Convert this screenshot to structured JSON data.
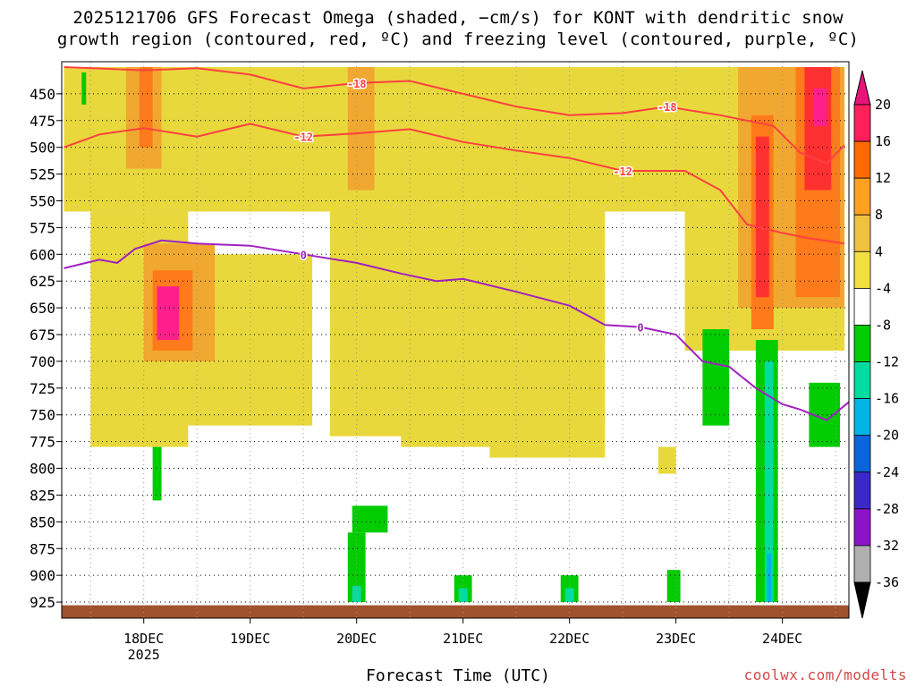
{
  "chart_data": {
    "type": "heatmap",
    "title_line1": "2025121706 GFS Forecast Omega (shaded, −cm/s) for KONT with dendritic snow",
    "title_line2": "growth region (contoured, red, ºC) and freezing level (contoured, purple, ºC)",
    "xlabel": "Forecast Time (UTC)",
    "credit": "coolwx.com/modelts",
    "x_range_hours": [
      -18.5,
      159
    ],
    "x_ticks": [
      {
        "hour": 0,
        "label": "18DEC",
        "sublabel": "2025"
      },
      {
        "hour": 24,
        "label": "19DEC"
      },
      {
        "hour": 48,
        "label": "20DEC"
      },
      {
        "hour": 72,
        "label": "21DEC"
      },
      {
        "hour": 96,
        "label": "22DEC"
      },
      {
        "hour": 120,
        "label": "23DEC"
      },
      {
        "hour": 144,
        "label": "24DEC"
      }
    ],
    "y_range_hpa": [
      420,
      940
    ],
    "y_ticks": [
      "450",
      "475",
      "500",
      "525",
      "550",
      "575",
      "600",
      "625",
      "650",
      "675",
      "700",
      "725",
      "750",
      "775",
      "800",
      "825",
      "850",
      "875",
      "900",
      "925"
    ],
    "colorbar": {
      "labels": [
        "20",
        "16",
        "12",
        "8",
        "4",
        "-4",
        "-8",
        "-12",
        "-16",
        "-20",
        "-24",
        "-28",
        "-32",
        "-36"
      ],
      "colors": [
        "#ff1f5a",
        "#ff6a00",
        "#ffa020",
        "#f0c040",
        "#f2e040",
        "#ffffff",
        "#00cc00",
        "#00dca0",
        "#00b4e6",
        "#0a64dc",
        "#3c28c8",
        "#8c14c8",
        "#b0b0b0"
      ],
      "top_arrow_color": "#e8147a",
      "bottom_arrow_color": "#000000"
    },
    "shading": [
      {
        "level": 4,
        "x0": -18,
        "x1": 158,
        "p0": 425,
        "p1": 560
      },
      {
        "level": 4,
        "x0": -12,
        "x1": 10,
        "p0": 560,
        "p1": 780
      },
      {
        "level": 4,
        "x0": 8,
        "x1": 38,
        "p0": 600,
        "p1": 760
      },
      {
        "level": 4,
        "x0": 42,
        "x1": 62,
        "p0": 425,
        "p1": 770
      },
      {
        "level": 4,
        "x0": 58,
        "x1": 80,
        "p0": 500,
        "p1": 780
      },
      {
        "level": 4,
        "x0": 78,
        "x1": 104,
        "p0": 480,
        "p1": 790
      },
      {
        "level": 4,
        "x0": 116,
        "x1": 120,
        "p0": 780,
        "p1": 805
      },
      {
        "level": 4,
        "x0": 122,
        "x1": 158,
        "p0": 425,
        "p1": 690
      },
      {
        "level": 8,
        "x0": -4,
        "x1": 4,
        "p0": 425,
        "p1": 520
      },
      {
        "level": 8,
        "x0": 0,
        "x1": 16,
        "p0": 590,
        "p1": 700
      },
      {
        "level": 8,
        "x0": 46,
        "x1": 52,
        "p0": 425,
        "p1": 540
      },
      {
        "level": 8,
        "x0": 134,
        "x1": 158,
        "p0": 425,
        "p1": 650
      },
      {
        "level": 12,
        "x0": -1,
        "x1": 2,
        "p0": 425,
        "p1": 500
      },
      {
        "level": 12,
        "x0": 2,
        "x1": 11,
        "p0": 615,
        "p1": 690
      },
      {
        "level": 12,
        "x0": 137,
        "x1": 142,
        "p0": 470,
        "p1": 670
      },
      {
        "level": 12,
        "x0": 147,
        "x1": 157,
        "p0": 425,
        "p1": 640
      },
      {
        "level": 16,
        "x0": 138,
        "x1": 141,
        "p0": 490,
        "p1": 640
      },
      {
        "level": 16,
        "x0": 149,
        "x1": 155,
        "p0": 425,
        "p1": 540
      },
      {
        "level": 20,
        "x0": 3,
        "x1": 8,
        "p0": 630,
        "p1": 680
      },
      {
        "level": 20,
        "x0": 151,
        "x1": 154,
        "p0": 445,
        "p1": 480
      },
      {
        "level": -4,
        "x0": -14,
        "x1": -13,
        "p0": 430,
        "p1": 460
      },
      {
        "level": -4,
        "x0": 2,
        "x1": 4,
        "p0": 780,
        "p1": 830
      },
      {
        "level": -4,
        "x0": 47,
        "x1": 55,
        "p0": 835,
        "p1": 860
      },
      {
        "level": -4,
        "x0": 46,
        "x1": 50,
        "p0": 860,
        "p1": 925
      },
      {
        "level": -4,
        "x0": 70,
        "x1": 74,
        "p0": 900,
        "p1": 925
      },
      {
        "level": -4,
        "x0": 94,
        "x1": 98,
        "p0": 900,
        "p1": 925
      },
      {
        "level": -4,
        "x0": 118,
        "x1": 121,
        "p0": 895,
        "p1": 925
      },
      {
        "level": -4,
        "x0": 126,
        "x1": 132,
        "p0": 670,
        "p1": 760
      },
      {
        "level": -4,
        "x0": 138,
        "x1": 143,
        "p0": 680,
        "p1": 925
      },
      {
        "level": -4,
        "x0": 150,
        "x1": 157,
        "p0": 720,
        "p1": 780
      },
      {
        "level": -8,
        "x0": 140,
        "x1": 142,
        "p0": 700,
        "p1": 925
      },
      {
        "level": -8,
        "x0": 47,
        "x1": 49,
        "p0": 910,
        "p1": 925
      },
      {
        "level": -8,
        "x0": 71,
        "x1": 73,
        "p0": 912,
        "p1": 925
      },
      {
        "level": -8,
        "x0": 95,
        "x1": 97,
        "p0": 912,
        "p1": 925
      },
      {
        "level": -12,
        "x0": 140.5,
        "x1": 141.5,
        "p0": 880,
        "p1": 925
      }
    ],
    "dgz_contours": [
      {
        "label": "-18",
        "points": [
          [
            -18,
            425
          ],
          [
            0,
            428
          ],
          [
            12,
            426
          ],
          [
            24,
            432
          ],
          [
            36,
            445
          ],
          [
            48,
            440
          ],
          [
            60,
            438
          ],
          [
            72,
            450
          ],
          [
            84,
            462
          ],
          [
            96,
            470
          ],
          [
            108,
            468
          ],
          [
            118,
            462
          ],
          [
            130,
            470
          ],
          [
            142,
            480
          ],
          [
            148,
            505
          ],
          [
            154,
            515
          ],
          [
            158,
            498
          ]
        ]
      },
      {
        "label": "-12",
        "points": [
          [
            -18,
            500
          ],
          [
            -10,
            488
          ],
          [
            0,
            482
          ],
          [
            12,
            490
          ],
          [
            24,
            478
          ],
          [
            36,
            490
          ],
          [
            48,
            487
          ],
          [
            60,
            483
          ],
          [
            72,
            495
          ],
          [
            84,
            503
          ],
          [
            96,
            510
          ],
          [
            108,
            522
          ],
          [
            122,
            522
          ],
          [
            130,
            540
          ],
          [
            136,
            572
          ],
          [
            144,
            580
          ],
          [
            150,
            585
          ],
          [
            158,
            590
          ]
        ]
      }
    ],
    "freezing_level": {
      "label": "0",
      "points": [
        [
          -18,
          613
        ],
        [
          -10,
          605
        ],
        [
          -6,
          608
        ],
        [
          -2,
          595
        ],
        [
          4,
          587
        ],
        [
          12,
          590
        ],
        [
          24,
          592
        ],
        [
          36,
          600
        ],
        [
          48,
          608
        ],
        [
          58,
          618
        ],
        [
          66,
          625
        ],
        [
          72,
          623
        ],
        [
          84,
          635
        ],
        [
          96,
          648
        ],
        [
          104,
          666
        ],
        [
          112,
          668
        ],
        [
          120,
          675
        ],
        [
          126,
          700
        ],
        [
          132,
          705
        ],
        [
          138,
          725
        ],
        [
          144,
          740
        ],
        [
          148,
          745
        ],
        [
          154,
          755
        ],
        [
          159,
          738
        ]
      ]
    },
    "ground": {
      "color": "#a0522d",
      "from_hpa": 928
    }
  }
}
